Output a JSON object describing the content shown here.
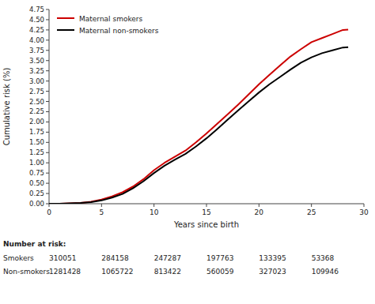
{
  "chart_data": {
    "type": "line",
    "xlabel": "Years since birth",
    "ylabel": "Cumulative risk (%)",
    "x": [
      0,
      1,
      2,
      3,
      4,
      5,
      6,
      7,
      8,
      9,
      10,
      11,
      12,
      13,
      14,
      15,
      16,
      17,
      18,
      19,
      20,
      21,
      22,
      23,
      24,
      25,
      26,
      27,
      28,
      28.5
    ],
    "series": [
      {
        "name": "Maternal smokers",
        "color": "#cc0000",
        "values": [
          0.0,
          0.0,
          0.01,
          0.02,
          0.05,
          0.1,
          0.18,
          0.28,
          0.42,
          0.6,
          0.82,
          1.0,
          1.15,
          1.3,
          1.5,
          1.72,
          1.95,
          2.18,
          2.42,
          2.67,
          2.92,
          3.15,
          3.38,
          3.6,
          3.78,
          3.95,
          4.05,
          4.15,
          4.25,
          4.26
        ]
      },
      {
        "name": "Maternal non-smokers",
        "color": "#000000",
        "values": [
          0.0,
          0.0,
          0.01,
          0.02,
          0.04,
          0.08,
          0.15,
          0.24,
          0.38,
          0.55,
          0.75,
          0.93,
          1.08,
          1.22,
          1.4,
          1.6,
          1.82,
          2.05,
          2.28,
          2.5,
          2.72,
          2.92,
          3.1,
          3.28,
          3.45,
          3.58,
          3.68,
          3.75,
          3.82,
          3.83
        ]
      }
    ],
    "xlim": [
      0,
      30
    ],
    "ylim": [
      0,
      4.75
    ],
    "xticks": [
      0,
      5,
      10,
      15,
      20,
      25,
      30
    ],
    "yticks": [
      {
        "value": 0.0,
        "label": "0.00"
      },
      0.25,
      {
        "value": 0.5,
        "label": "0.50"
      },
      0.75,
      {
        "value": 1.0,
        "label": "1.00"
      },
      1.25,
      {
        "value": 1.5,
        "label": "1.50"
      },
      1.75,
      {
        "value": 2.0,
        "label": "2.00"
      },
      2.25,
      {
        "value": 2.5,
        "label": "2.50"
      },
      2.75,
      {
        "value": 3.0,
        "label": "3.00"
      },
      3.25,
      {
        "value": 3.5,
        "label": "3.50"
      },
      3.75,
      {
        "value": 4.0,
        "label": "4.00"
      },
      4.25,
      {
        "value": 4.5,
        "label": "4.50"
      },
      4.75
    ],
    "grid": false,
    "legend": "upper left",
    "risk_table": {
      "title": "Number at risk:",
      "x": [
        0,
        5,
        10,
        15,
        20,
        25
      ],
      "rows": [
        {
          "name": "Smokers",
          "values": [
            310051,
            284158,
            247287,
            197763,
            133395,
            53368
          ]
        },
        {
          "name": "Non-smokers",
          "values": [
            1281428,
            1065722,
            813422,
            560059,
            327023,
            109946
          ]
        }
      ]
    }
  }
}
